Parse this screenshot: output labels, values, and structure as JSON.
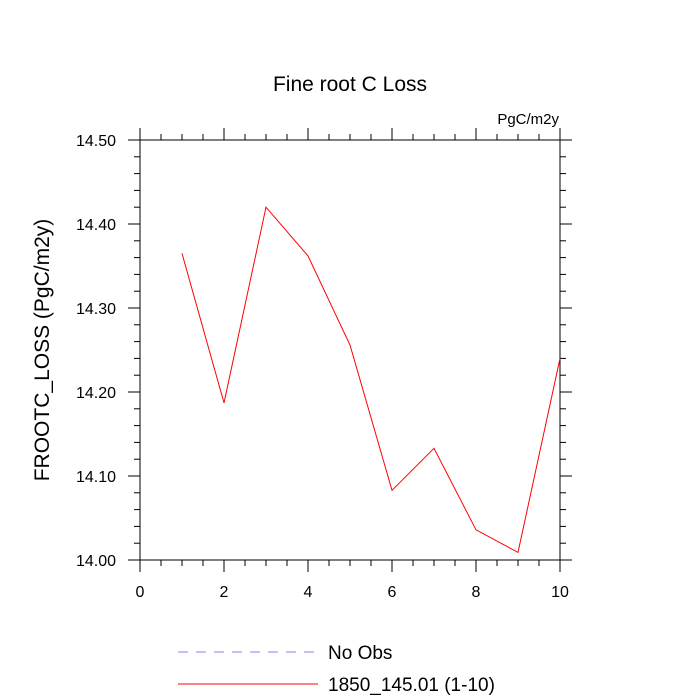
{
  "chart_data": {
    "type": "line",
    "title": "Fine root C Loss",
    "units": "PgC/m2y",
    "ylabel": "FROOTC_LOSS  (PgC/m2y)",
    "xlabel": "",
    "xlim": [
      0,
      10
    ],
    "ylim": [
      14.0,
      14.5
    ],
    "xticks": [
      0,
      2,
      4,
      6,
      8,
      10
    ],
    "xtick_labels": [
      "0",
      "2",
      "4",
      "6",
      "8",
      "10"
    ],
    "yticks": [
      14.0,
      14.1,
      14.2,
      14.3,
      14.4,
      14.5
    ],
    "ytick_labels": [
      "14.00",
      "14.10",
      "14.20",
      "14.30",
      "14.40",
      "14.50"
    ],
    "grid": false,
    "legend_position": "bottom",
    "series": [
      {
        "name": "1850_145.01 (1-10)",
        "color": "#ff0000",
        "x": [
          1,
          2,
          3,
          4,
          5,
          6,
          7,
          8,
          9,
          10
        ],
        "y": [
          14.365,
          14.187,
          14.42,
          14.362,
          14.256,
          14.083,
          14.133,
          14.036,
          14.009,
          14.24
        ]
      }
    ],
    "legend": [
      {
        "label": "No Obs",
        "color": "#8080ff",
        "style": "dashed"
      },
      {
        "label": "1850_145.01 (1-10)",
        "color": "#ff0000",
        "style": "solid"
      }
    ]
  }
}
